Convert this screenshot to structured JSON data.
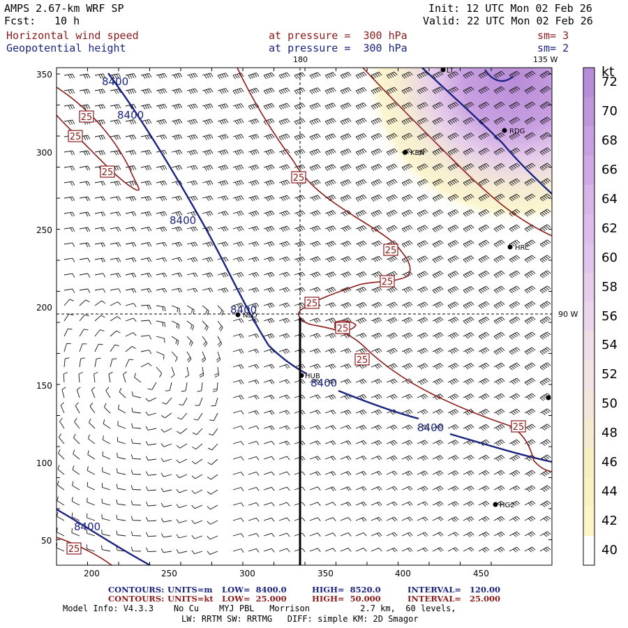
{
  "header": {
    "model": "AMPS 2.67-km WRF SP",
    "init": "Init: 12 UTC Mon 02 Feb 26",
    "fcst_label": "Fcst:",
    "fcst_value": "10 h",
    "valid": "Valid: 22 UTC Mon 02 Feb 26"
  },
  "fields": [
    {
      "name": "Horizontal wind speed",
      "pressure": "at pressure =  300 hPa",
      "sm": "sm= 3",
      "color": "#8b1a1a"
    },
    {
      "name": "Geopotential height",
      "pressure": "at pressure =  300 hPa",
      "sm": "sm= 2",
      "color": "#1a237e"
    }
  ],
  "map": {
    "meridian_180": "180",
    "meridian_135w": "135 W",
    "meridian_90w": "90 W",
    "x_ticks": [
      "200",
      "250",
      "300",
      "350",
      "400",
      "450"
    ],
    "y_ticks": [
      "350",
      "300",
      "250",
      "200",
      "150",
      "100",
      "50"
    ],
    "height_contour_label": "8400",
    "speed_contour_label": "25",
    "stations": [
      {
        "id": "LT",
        "label": "LT"
      },
      {
        "id": "RDG",
        "label": "RDG"
      },
      {
        "id": "KEN",
        "label": "KEN"
      },
      {
        "id": "HRC",
        "label": "HRC"
      },
      {
        "id": "NLO",
        "label": "NLO"
      },
      {
        "id": "HUB",
        "label": "HUB"
      },
      {
        "id": "HG2",
        "label": "HG2"
      },
      {
        "id": "EDGE",
        "label": ""
      }
    ]
  },
  "colorbar": {
    "unit": "kt",
    "levels": [
      "72",
      "70",
      "68",
      "66",
      "64",
      "62",
      "60",
      "58",
      "56",
      "54",
      "52",
      "50",
      "48",
      "46",
      "44",
      "42",
      "40"
    ],
    "colors": [
      "#b88cd8",
      "#c095dc",
      "#c89fe0",
      "#d0a9e4",
      "#d8b4e8",
      "#dcbceb",
      "#e0c4ec",
      "#e6cdeb",
      "#ebd5ea",
      "#efdde8",
      "#f2e3e4",
      "#f4e6dd",
      "#f6eacf",
      "#f8eec4",
      "#faf2c2",
      "#fbf5c8",
      "#ffffff"
    ]
  },
  "footer": {
    "row1": {
      "title": "CONTOURS:",
      "units": "UNITS=m",
      "low": "LOW=  8400.0",
      "high": "HIGH=  8520.0",
      "interval": "INTERVAL=   120.00",
      "color": "#1a237e"
    },
    "row2": {
      "title": "CONTOURS:",
      "units": "UNITS=kt",
      "low": "LOW=  25.000",
      "high": "HIGH=  50.000",
      "interval": "INTERVAL=   25.000",
      "color": "#8b1a1a"
    },
    "model_info": "Model Info: V4.3.3    No Cu    MYJ PBL   Morrison          2.7 km,  60 levels,",
    "physics": "LW: RRTM SW: RRTMG   DIFF: simple KM: 2D Smagor"
  }
}
